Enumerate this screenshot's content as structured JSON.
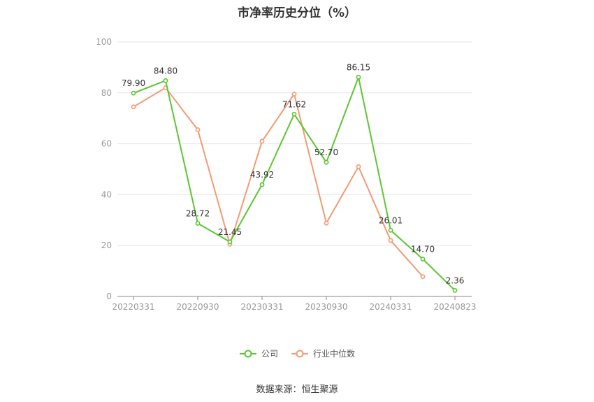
{
  "chart_data": {
    "type": "line",
    "title": "市净率历史分位（%）",
    "xlabel": "",
    "ylabel": "",
    "ylim": [
      0,
      100
    ],
    "y_ticks": [
      0,
      20,
      40,
      60,
      80,
      100
    ],
    "x_tick_labels": [
      "20220331",
      "20220930",
      "20230331",
      "20230930",
      "20240331",
      "20240823"
    ],
    "x": [
      "20220331",
      "20220630",
      "20220930",
      "20221230",
      "20230331",
      "20230630",
      "20230930",
      "20231229",
      "20240331",
      "20240630",
      "20240823"
    ],
    "series": [
      {
        "name": "公司",
        "color": "#5cc632",
        "values": [
          79.9,
          84.8,
          28.72,
          21.45,
          43.92,
          71.62,
          52.7,
          86.15,
          26.01,
          14.7,
          2.36
        ],
        "labels": [
          "79.90",
          "84.80",
          "28.72",
          "21.45",
          "43.92",
          "71.62",
          "52.70",
          "86.15",
          "26.01",
          "14.70",
          "2.36"
        ]
      },
      {
        "name": "行业中位数",
        "color": "#f59a74",
        "values": [
          74.5,
          82.0,
          65.5,
          20.5,
          61.0,
          79.5,
          28.8,
          51.0,
          22.0,
          7.8,
          null
        ]
      }
    ],
    "grid": true,
    "legend_position": "bottom-center"
  },
  "source_note": "数据来源：恒生聚源"
}
